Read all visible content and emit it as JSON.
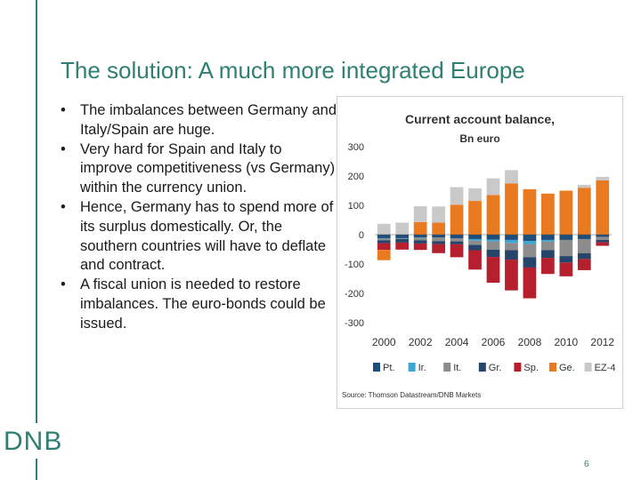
{
  "slide": {
    "title": "The solution: A much more integrated Europe",
    "bullets": [
      "The imbalances between Germany and Italy/Spain are huge.",
      "Very hard for Spain and Italy to improve competitiveness (vs Germany) within the currency union.",
      "Hence, Germany has to spend more of its surplus domestically. Or, the southern countries will have to deflate and contract.",
      "A fiscal union is needed to restore imbalances. The euro-bonds could be issued."
    ],
    "bullet_char": "•",
    "logo": "DNB",
    "page_number": "6"
  },
  "chart_data": {
    "type": "bar",
    "stacked": true,
    "title": "Current account balance,",
    "subtitle": "Bn euro",
    "source": "Source: Thomson Datastream/DNB Markets",
    "x": [
      2000,
      2001,
      2002,
      2003,
      2004,
      2005,
      2006,
      2007,
      2008,
      2009,
      2010,
      2011,
      2012
    ],
    "x_tick_labels": [
      "2000",
      "2002",
      "2004",
      "2006",
      "2008",
      "2010",
      "2012"
    ],
    "x_tick_years": [
      2000,
      2002,
      2004,
      2006,
      2008,
      2010,
      2012
    ],
    "ylim": [
      -300,
      300
    ],
    "yticks": [
      300,
      200,
      100,
      0,
      -100,
      -200,
      -300
    ],
    "legend_position": "bottom",
    "series": [
      {
        "name": "Pt.",
        "color": "#1f4e79",
        "values": [
          -12,
          -12,
          -10,
          -10,
          -13,
          -15,
          -17,
          -18,
          -22,
          -18,
          -18,
          -15,
          -8
        ]
      },
      {
        "name": "Ir.",
        "color": "#3aa7d6",
        "values": [
          -1,
          -1,
          -1,
          0,
          0,
          -5,
          -6,
          -10,
          -10,
          -5,
          0,
          0,
          0
        ]
      },
      {
        "name": "It.",
        "color": "#8c8c8c",
        "values": [
          -6,
          -2,
          -8,
          -12,
          -10,
          -15,
          -28,
          -25,
          -45,
          -30,
          -55,
          -48,
          -10
        ]
      },
      {
        "name": "Gr.",
        "color": "#27456b",
        "values": [
          -10,
          -12,
          -11,
          -10,
          -10,
          -18,
          -25,
          -32,
          -35,
          -26,
          -22,
          -20,
          -8
        ]
      },
      {
        "name": "Sp.",
        "color": "#b51f2e",
        "values": [
          -23,
          -24,
          -22,
          -31,
          -44,
          -66,
          -88,
          -105,
          -105,
          -55,
          -47,
          -38,
          -12
        ]
      },
      {
        "name": "Ge.",
        "color": "#ea7a1f",
        "values": [
          -35,
          0,
          43,
          41,
          102,
          115,
          135,
          175,
          155,
          140,
          150,
          160,
          185
        ]
      },
      {
        "name": "EZ-4",
        "color": "#c9c9c9",
        "values": [
          37,
          41,
          54,
          55,
          60,
          43,
          57,
          45,
          0,
          0,
          0,
          10,
          12
        ]
      }
    ]
  }
}
